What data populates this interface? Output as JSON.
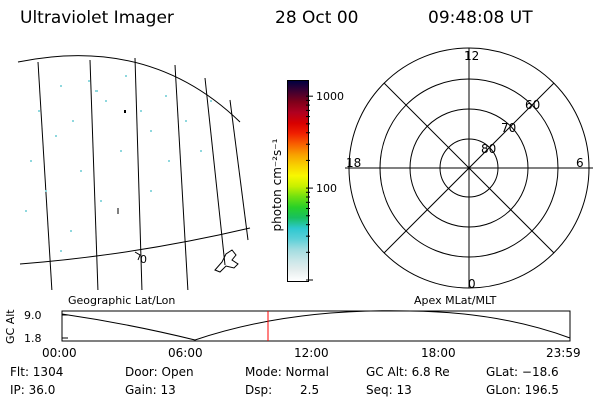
{
  "header": {
    "instrument": "Ultraviolet Imager",
    "date": "28 Oct 00",
    "time": "09:48:08 UT"
  },
  "colorbar": {
    "unit": "photon cm⁻²s⁻¹",
    "tick_labels": [
      "1000",
      "100"
    ],
    "tick_values": [
      1000,
      100
    ],
    "range": [
      10,
      1500
    ],
    "colors": [
      "#ffffff",
      "#e6eeee",
      "#c8e6e8",
      "#a0dce0",
      "#5ad0d8",
      "#2ec8d0",
      "#18c060",
      "#28d028",
      "#70e010",
      "#c8f000",
      "#f8f800",
      "#f8d000",
      "#f8a000",
      "#f86000",
      "#f02000",
      "#d80000",
      "#b00020",
      "#80001a",
      "#400030",
      "#000040"
    ]
  },
  "left_panel": {
    "label": "Geographic Lat/Lon",
    "annotation": "0"
  },
  "right_panel": {
    "label": "Apex MLat/MLT",
    "mlt_labels": {
      "top": "12",
      "right": "6",
      "bottom": "0",
      "left": "18"
    },
    "lat_labels": [
      "80",
      "70",
      "60"
    ]
  },
  "gc_plot": {
    "ylabel": "GC Alt",
    "ytick_top": "9.0",
    "ytick_bottom": "1.8",
    "time_labels": [
      "00:00",
      "06:00",
      "12:00",
      "18:00",
      "23:59"
    ],
    "marker_color": "#ff0000"
  },
  "footer": {
    "flt": "Flt: 1304",
    "ip": "IP: 36.0",
    "door": "Door: Open",
    "gain": "Gain: 13",
    "mode": "Mode: Normal",
    "dsp_label": "Dsp:",
    "dsp_value": "2.5",
    "gc_alt": "GC Alt: 6.8 Re",
    "seq": "Seq: 13",
    "glat": "GLat: −18.6",
    "glon": "GLon: 196.5"
  }
}
